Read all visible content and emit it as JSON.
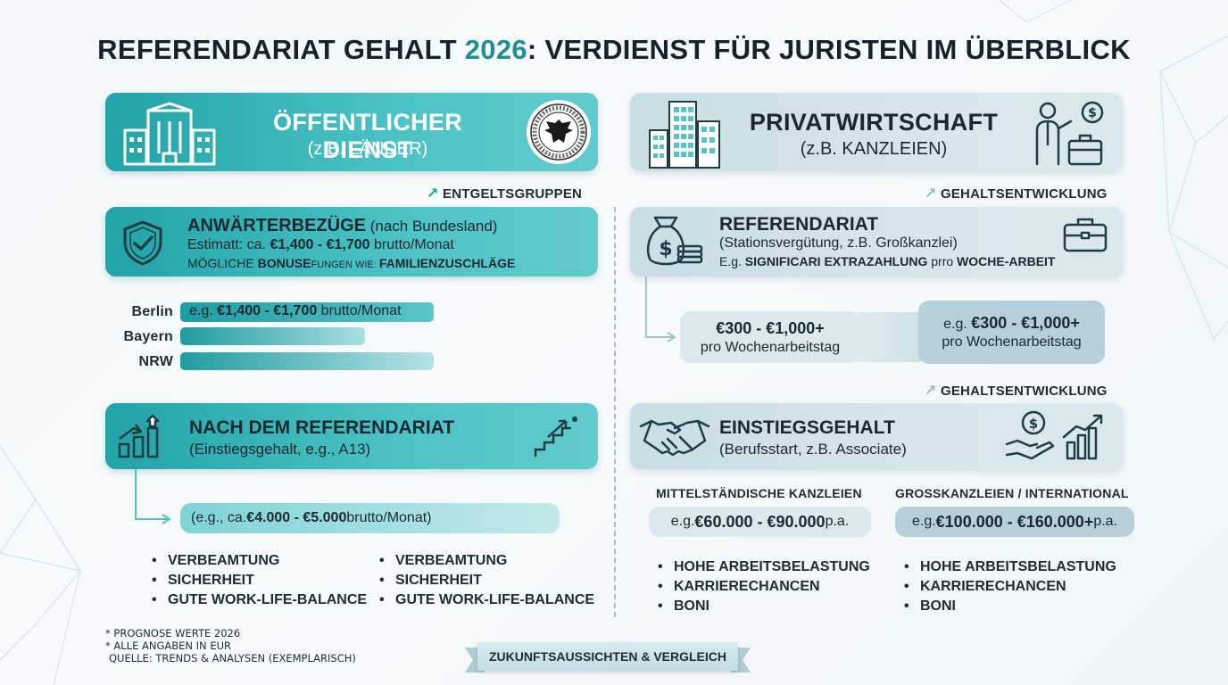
{
  "title": {
    "part1": "REFERENDARIAT GEHALT ",
    "year": "2026",
    "part2": ": VERDIENST FÜR JURISTEN IM ÜBERBLICK"
  },
  "colors": {
    "teal": "#22a3a7",
    "teal_light": "#5ccacc",
    "grey_panel": "#d3e4ea",
    "dark_text": "#1a2830"
  },
  "left": {
    "header": {
      "title": "ÖFFENTLICHER DIENST",
      "subtitle": "(z.B. LÄNDER)",
      "icon": "government-building-icon",
      "seal": "federal-eagle-seal"
    },
    "section_label": "ENTGELTSGRUPPEN",
    "anwaerter": {
      "title_bold": "ANWÄRTERBEZÜGE",
      "title_rest": " (nach Bundesland)",
      "line2_pre": "Estimatt: ca. ",
      "line2_bold": "€1,400 - €1,700",
      "line2_post": " brutto/Monat",
      "line3_pre": "MÖGLICHE ",
      "line3_bold": "BONUSE",
      "line3_mid": "FUNGEN WIE: ",
      "line3_bold2": "FAMILIENZUSCHLÄGE",
      "icon": "shield-check-icon"
    },
    "states": [
      {
        "name": "Berlin",
        "bar_label_pre": "e.g. ",
        "bar_label_bold": "€1,400 - €1,700",
        "bar_label_post": " brutto/Monat",
        "fill": 0.63
      },
      {
        "name": "Bayern",
        "fill": 0.46
      },
      {
        "name": "NRW",
        "fill": 0.63
      }
    ],
    "nach": {
      "title": "NACH DEM REFERENDARIAT",
      "subtitle": "(Einstiegsgehalt, e.g., A13)",
      "icon": "growth-chart-icon",
      "icon_right": "stairs-up-icon"
    },
    "nach_value": {
      "pre": "(e.g., ca. ",
      "bold": "€4.000 - €5.000",
      "post": " brutto/Monat)"
    },
    "list_a": [
      "VERBEAMTUNG",
      "SICHERHEIT",
      "GUTE WORK-LIFE-BALANCE"
    ],
    "list_b": [
      "VERBEAMTUNG",
      "SICHERHEIT",
      "GUTE WORK-LIFE-BALANCE"
    ]
  },
  "right": {
    "header": {
      "title": "PRIVATWIRTSCHAFT",
      "subtitle": "(z.B. KANZLEIEN)",
      "icon": "office-tower-icon",
      "icon_right": "businessman-money-icon"
    },
    "section_label_1": "GEHALTSENTWICKLUNG",
    "referendariat": {
      "title": "REFERENDARIAT",
      "subtitle": "(Stationsvergütung, z.B. Großkanzlei)",
      "line3_pre": "E.g. ",
      "line3_bold": "SIGNIFICARI EXTRAZAHLUNG",
      "line3_mid": " prro ",
      "line3_bold2": "WOCHE-ARBEIT",
      "icon": "money-bag-icon",
      "icon_right": "briefcase-icon"
    },
    "pill_a": {
      "bold": "€300 - €1,000+",
      "sub": "pro Wochenarbeitstag"
    },
    "pill_b": {
      "pre": "e.g. ",
      "bold": "€300 - €1,000+",
      "sub": "pro Wochenarbeitstag"
    },
    "section_label_2": "GEHALTSENTWICKLUNG",
    "einstieg": {
      "title": "EINSTIEGSGEHALT",
      "subtitle": "(Berufsstart, z.B. Associate)",
      "icon": "handshake-icon",
      "icon_right": "coin-hand-chart-icon"
    },
    "col_a": {
      "label": "MITTELSTÄNDISCHE KANZLEIEN",
      "pre": "e.g. ",
      "bold": "€60.000 - €90.000",
      "post": " p.a.",
      "list": [
        "HOHE ARBEITSBELASTUNG",
        "KARRIERECHANCEN",
        "BONI"
      ]
    },
    "col_b": {
      "label": "GROSSKANZLEIEN / INTERNATIONAL",
      "pre": "e.g. ",
      "bold": "€100.000 - €160.000+",
      "post": " p.a.",
      "list": [
        "HOHE ARBEITSBELASTUNG",
        "KARRIERECHANCEN",
        "BONI"
      ]
    }
  },
  "notes": [
    "* PROGNOSE WERTE 2026",
    "* ALLE ANGABEN IN EUR",
    "QUELLE: TRENDS & ANALYSEN (EXEMPLARISCH)"
  ],
  "ribbon": "ZUKUNFTSAUSSICHTEN & VERGLEICH"
}
